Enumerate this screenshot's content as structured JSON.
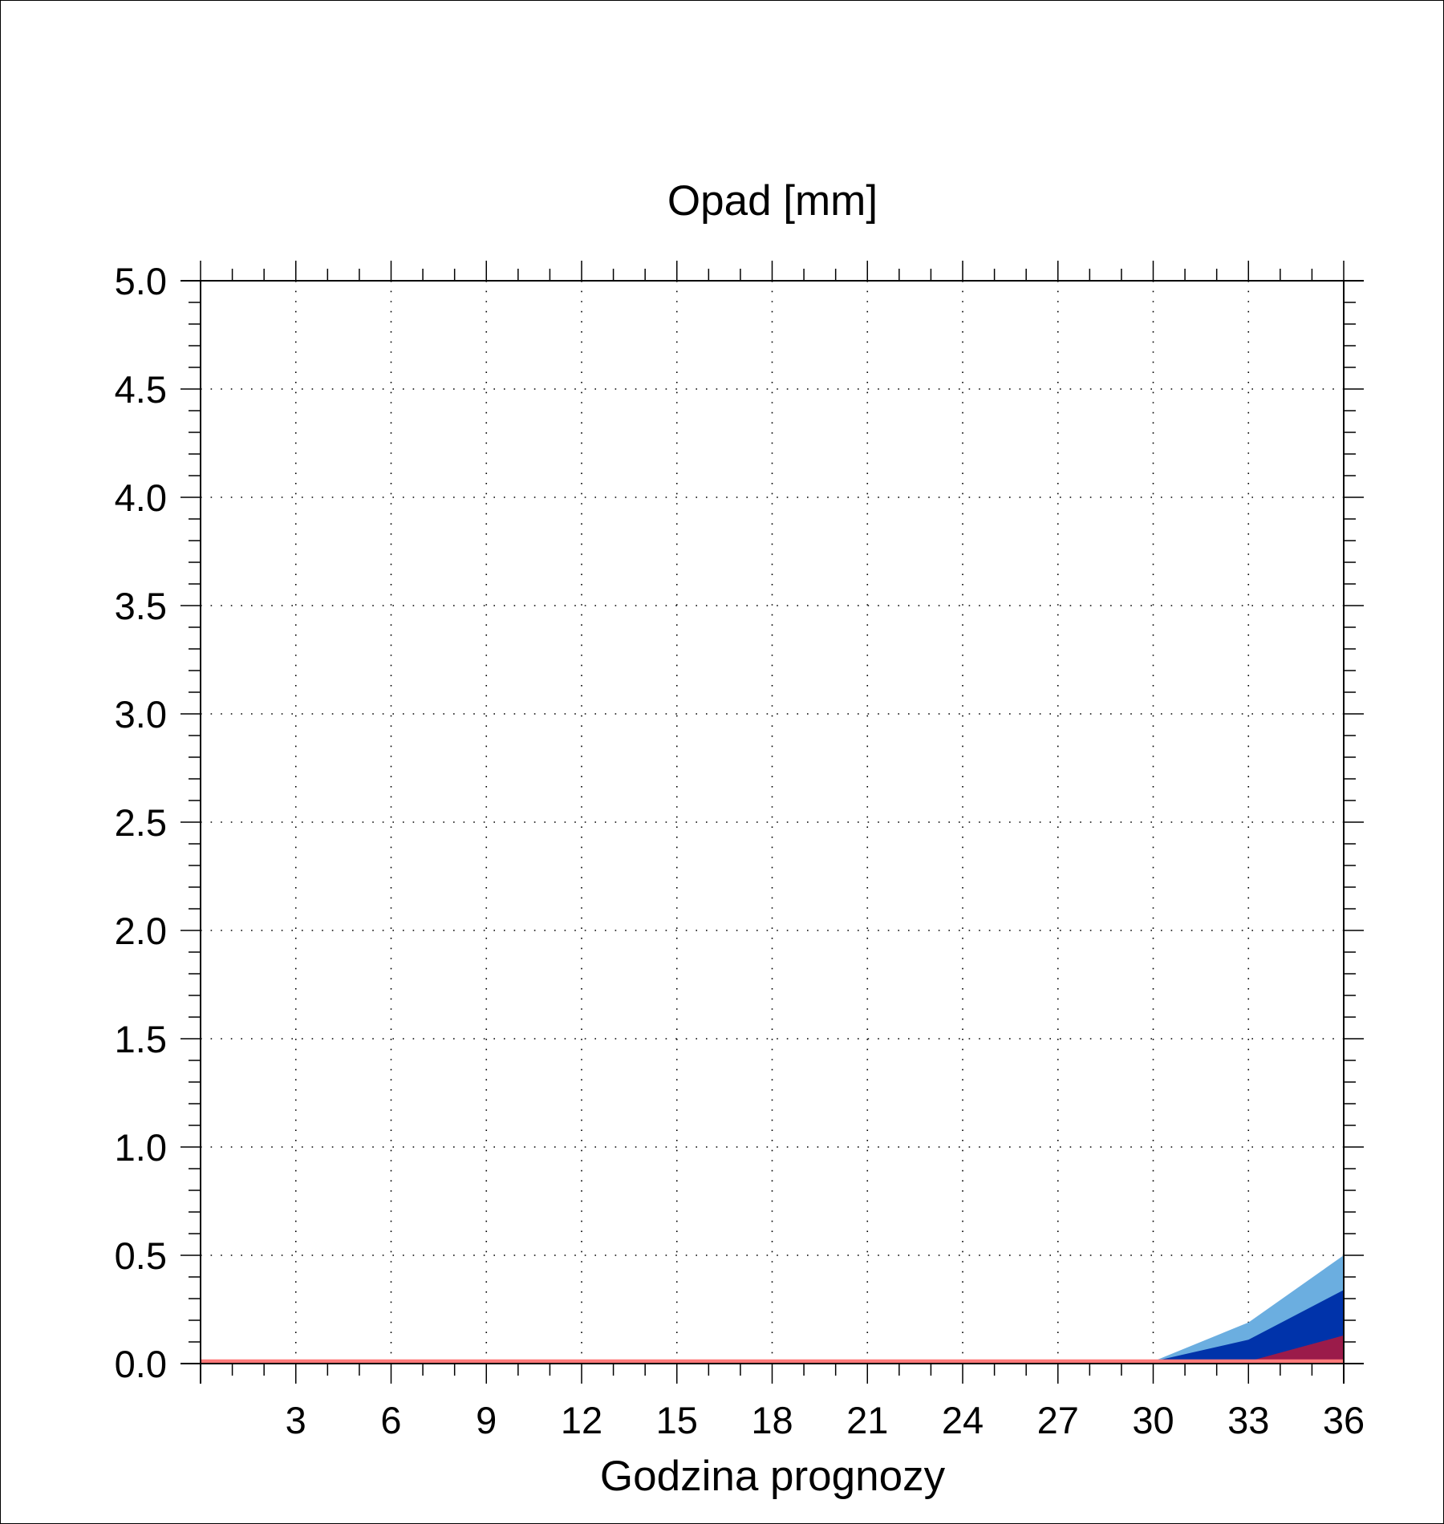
{
  "chart_data": {
    "type": "area",
    "title": "Opad [mm]",
    "xlabel": "Godzina prognozy",
    "ylabel": "",
    "xlim": [
      0,
      36
    ],
    "ylim": [
      0,
      5.0
    ],
    "x_ticks": [
      3,
      6,
      9,
      12,
      15,
      18,
      21,
      24,
      27,
      30,
      33,
      36
    ],
    "y_ticks": [
      "0.0",
      "0.5",
      "1.0",
      "1.5",
      "2.0",
      "2.5",
      "3.0",
      "3.5",
      "4.0",
      "4.5",
      "5.0"
    ],
    "grid": true,
    "x": [
      0,
      3,
      6,
      9,
      12,
      15,
      18,
      21,
      24,
      27,
      30,
      33,
      36
    ],
    "series": [
      {
        "values": [
          0,
          0,
          0,
          0,
          0,
          0,
          0,
          0,
          0,
          0.01,
          0.01,
          0.19,
          0.5
        ],
        "color": "#6baee0"
      },
      {
        "values": [
          0,
          0,
          0,
          0,
          0,
          0,
          0,
          0,
          0,
          0.01,
          0.01,
          0.11,
          0.34
        ],
        "color": "#0033aa"
      },
      {
        "values": [
          0,
          0,
          0,
          0,
          0,
          0,
          0,
          0,
          0,
          0.0,
          0.0,
          0.01,
          0.13
        ],
        "color": "#9b1b4a"
      },
      {
        "values": [
          0.01,
          0.01,
          0.01,
          0.01,
          0.01,
          0.01,
          0.01,
          0.01,
          0.01,
          0.01,
          0.01,
          0.01,
          0.01
        ],
        "color": "#ff7a7a"
      }
    ]
  }
}
